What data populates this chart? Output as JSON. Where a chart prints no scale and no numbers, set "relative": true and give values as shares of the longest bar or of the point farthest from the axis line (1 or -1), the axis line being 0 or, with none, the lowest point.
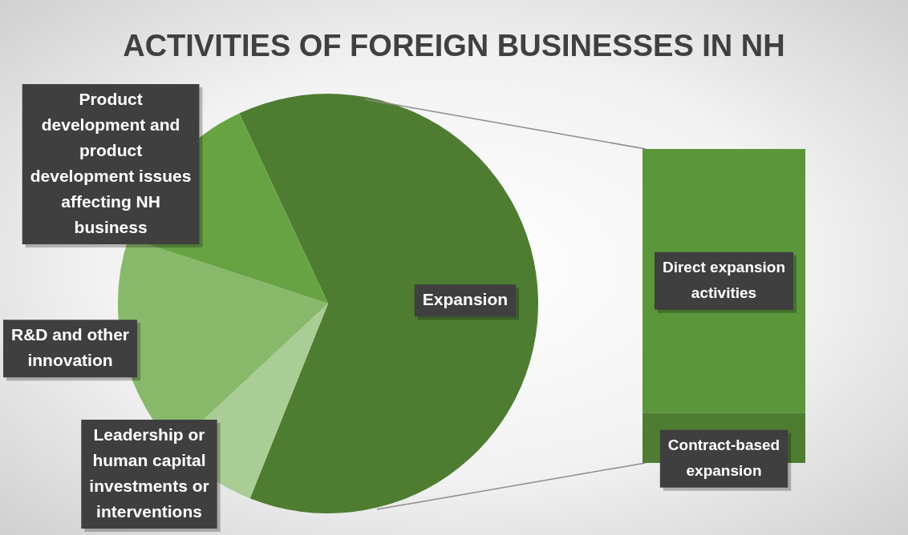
{
  "chart_data": [
    {
      "type": "pie",
      "title": "ACTIVITIES OF FOREIGN BUSINESSES IN NH",
      "categories": [
        "Expansion",
        "Leadership or human capital investments or interventions",
        "R&D and other innovation",
        "Product development and product development issues affecting NH business"
      ],
      "values": [
        63,
        7,
        17,
        13
      ],
      "colors": [
        "#4e7d32",
        "#a9cd94",
        "#88b96b",
        "#68a343"
      ]
    },
    {
      "type": "bar",
      "stacked": true,
      "relative": true,
      "categories": [
        null
      ],
      "series": [
        {
          "name": "Contract-based expansion",
          "color": "#4e7d32",
          "values": [
            0.16
          ]
        },
        {
          "name": "Direct expansion activities",
          "color": "#5c963b",
          "values": [
            0.84
          ]
        }
      ]
    }
  ]
}
